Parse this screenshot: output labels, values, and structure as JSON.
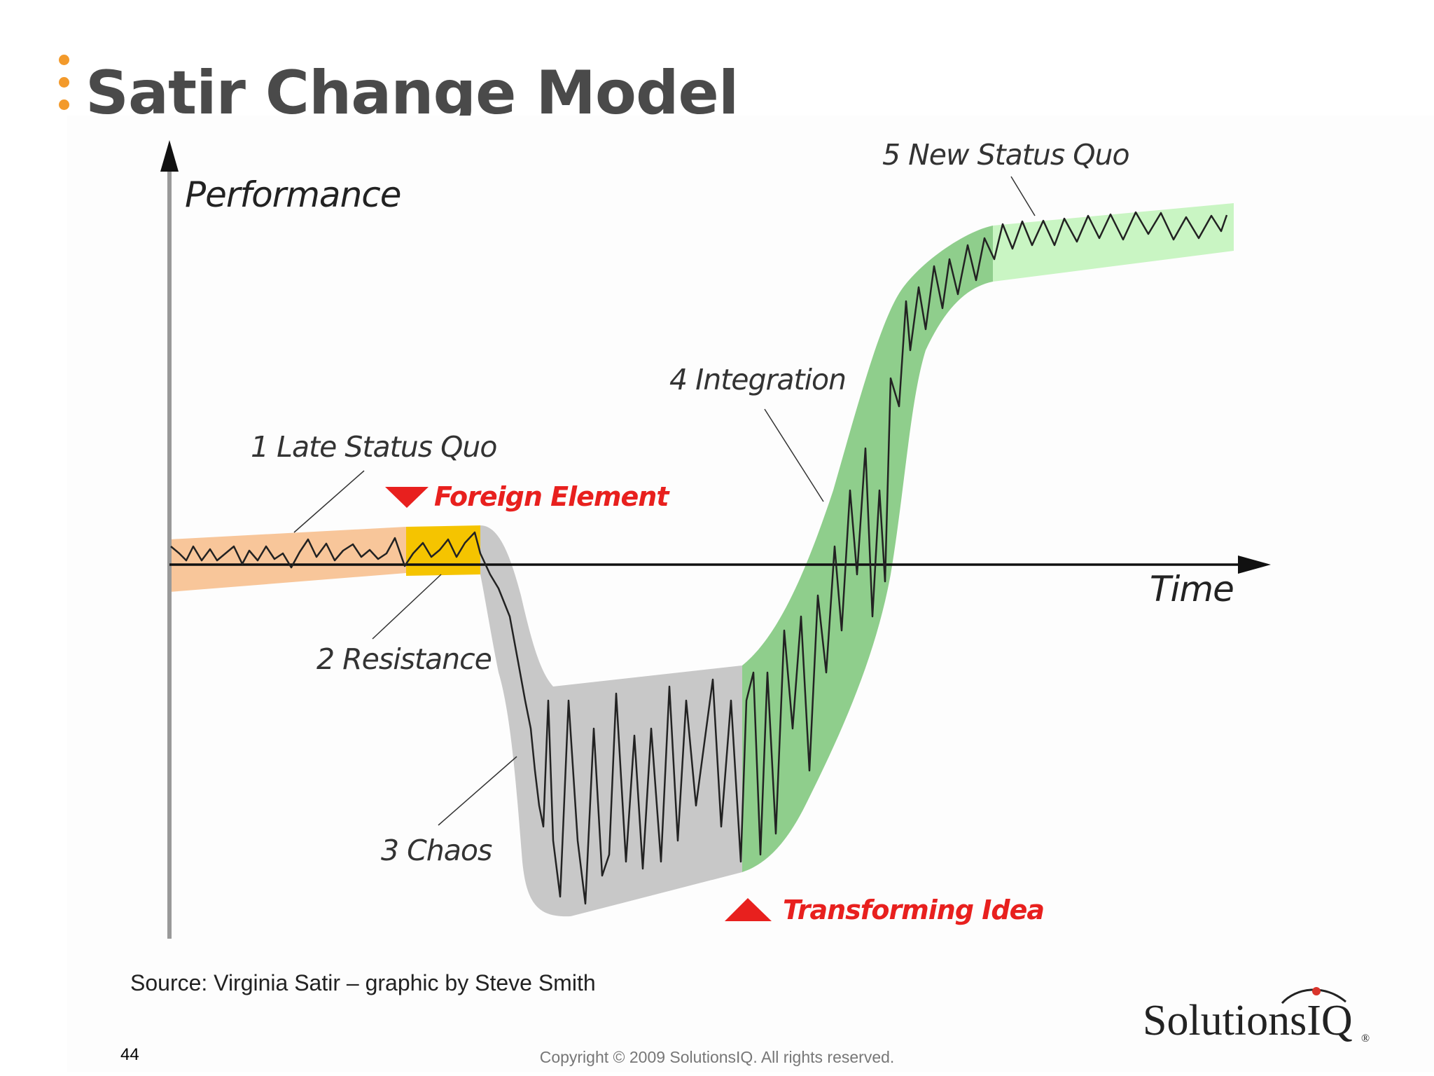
{
  "slide": {
    "title": "Satir Change Model",
    "source": "Source: Virginia Satir – graphic by Steve Smith",
    "page_number": "44",
    "copyright": "Copyright © 2009 SolutionsIQ. All rights reserved.",
    "logo_text": "SolutionsIQ",
    "logo_mark": "®"
  },
  "diagram": {
    "y_axis_label": "Performance",
    "x_axis_label": "Time",
    "stages": [
      {
        "label": "1 Late Status Quo",
        "color": "#f8c69a"
      },
      {
        "label": "2 Resistance",
        "color": "#f5c400"
      },
      {
        "label": "3 Chaos",
        "color": "#c8c8c8"
      },
      {
        "label": "4 Integration",
        "color": "#8fce8c"
      },
      {
        "label": "5 New Status Quo",
        "color": "#c9f5c3"
      }
    ],
    "events": {
      "foreign_element": "Foreign Element",
      "transforming_idea": "Transforming Idea"
    },
    "event_color": "#e8201e"
  }
}
